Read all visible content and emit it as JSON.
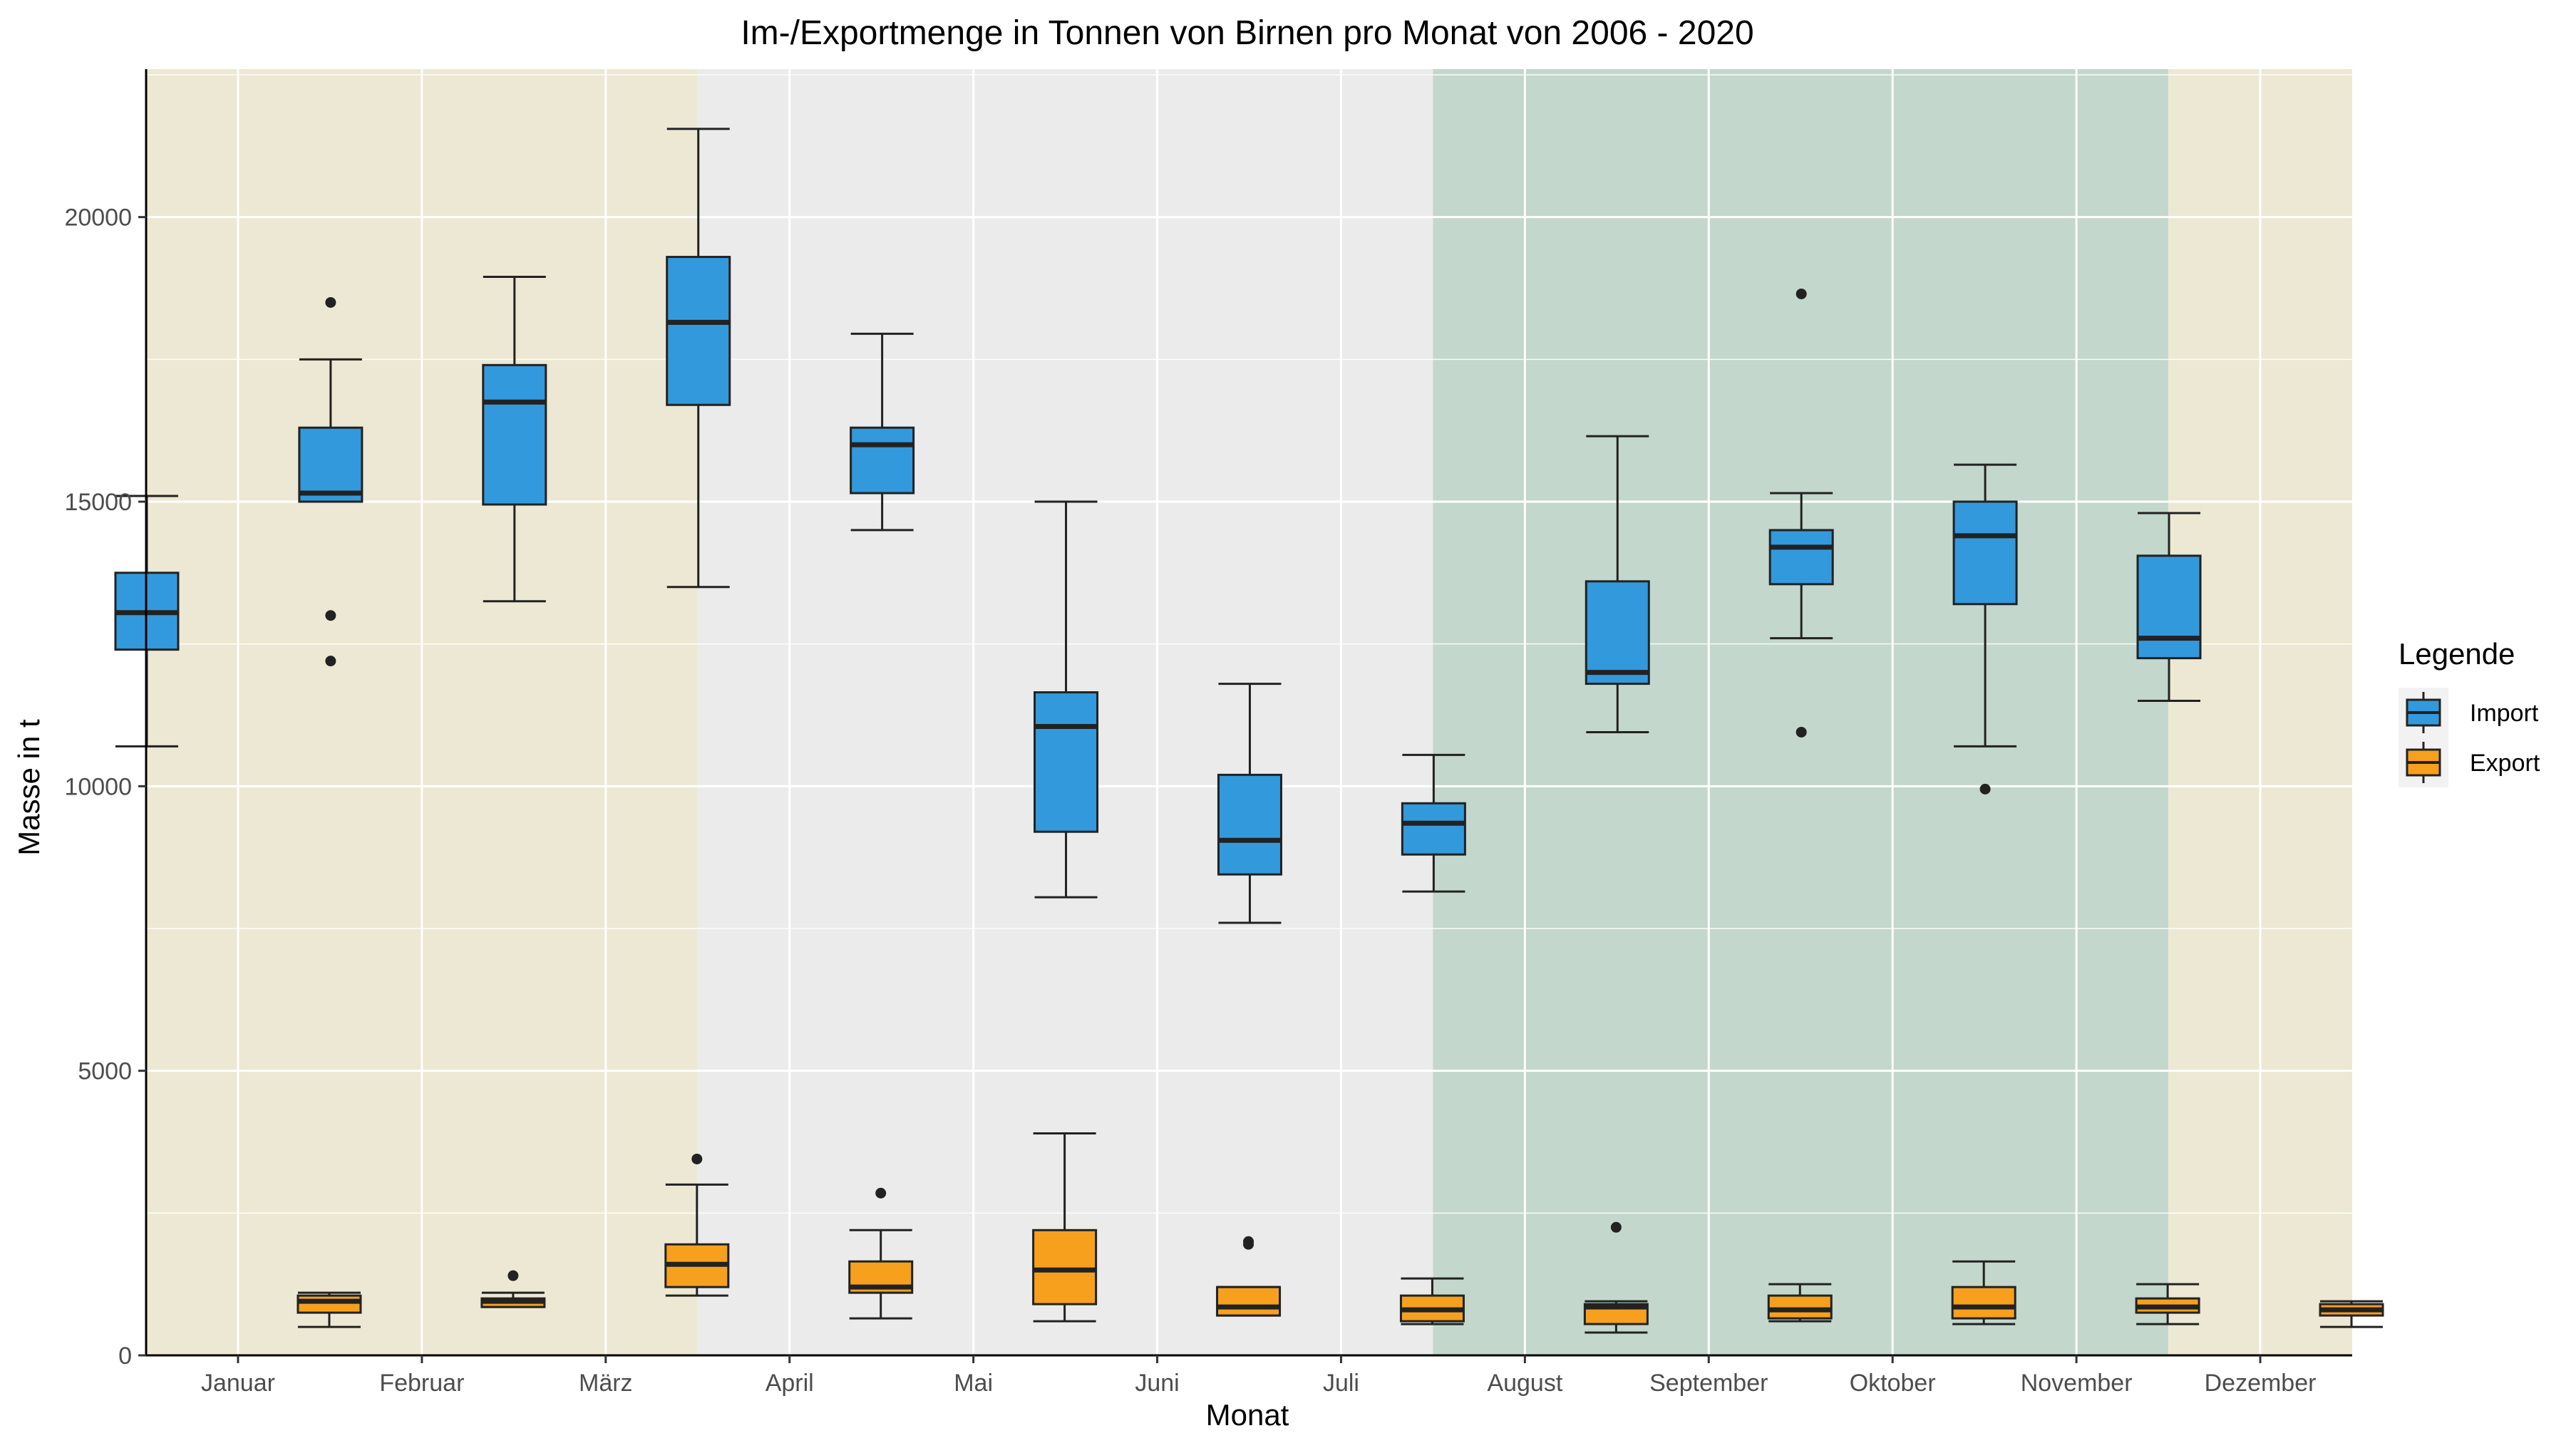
{
  "chart_data": {
    "type": "box",
    "title": "Im-/Exportmenge in Tonnen von Birnen pro Monat von 2006 - 2020",
    "xlabel": "Monat",
    "ylabel": "Masse in t",
    "ylim": [
      0,
      22600
    ],
    "yticks": [
      0,
      5000,
      10000,
      15000,
      20000
    ],
    "grid": true,
    "categories": [
      "Januar",
      "Februar",
      "März",
      "April",
      "Mai",
      "Juni",
      "Juli",
      "August",
      "September",
      "Oktober",
      "November",
      "Dezember"
    ],
    "season_bands": [
      {
        "from": 0,
        "to": 2,
        "color": "#ede8d3"
      },
      {
        "from": 3,
        "to": 6,
        "color": "#ebebeb"
      },
      {
        "from": 7,
        "to": 10,
        "color": "#c3d7cc"
      },
      {
        "from": 11,
        "to": 11,
        "color": "#ede8d3"
      }
    ],
    "legend": {
      "title": "Legende",
      "position": "right"
    },
    "series": [
      {
        "name": "Import",
        "color": "#3399dd",
        "boxes": [
          {
            "min": 10700,
            "q1": 12400,
            "median": 13050,
            "q3": 13750,
            "max": 15100,
            "outliers": []
          },
          {
            "min": 15000,
            "q1": 15000,
            "median": 15150,
            "q3": 16300,
            "max": 17500,
            "outliers": [
              18500,
              13000,
              12200
            ]
          },
          {
            "min": 13250,
            "q1": 14950,
            "median": 16750,
            "q3": 17400,
            "max": 18950,
            "outliers": []
          },
          {
            "min": 13500,
            "q1": 16700,
            "median": 18150,
            "q3": 19300,
            "max": 21550,
            "outliers": []
          },
          {
            "min": 14500,
            "q1": 15150,
            "median": 16000,
            "q3": 16300,
            "max": 17950,
            "outliers": []
          },
          {
            "min": 8050,
            "q1": 9200,
            "median": 11050,
            "q3": 11650,
            "max": 15000,
            "outliers": []
          },
          {
            "min": 7600,
            "q1": 8450,
            "median": 9050,
            "q3": 10200,
            "max": 11800,
            "outliers": []
          },
          {
            "min": 8150,
            "q1": 8800,
            "median": 9350,
            "q3": 9700,
            "max": 10550,
            "outliers": []
          },
          {
            "min": 10950,
            "q1": 11800,
            "median": 12000,
            "q3": 13600,
            "max": 16150,
            "outliers": []
          },
          {
            "min": 12600,
            "q1": 13550,
            "median": 14200,
            "q3": 14500,
            "max": 15150,
            "outliers": [
              18650,
              10950
            ]
          },
          {
            "min": 10700,
            "q1": 13200,
            "median": 14400,
            "q3": 15000,
            "max": 15650,
            "outliers": [
              9950
            ]
          },
          {
            "min": 11500,
            "q1": 12250,
            "median": 12600,
            "q3": 14050,
            "max": 14800,
            "outliers": []
          }
        ]
      },
      {
        "name": "Export",
        "color": "#f7a01e",
        "boxes": [
          {
            "min": 500,
            "q1": 750,
            "median": 950,
            "q3": 1050,
            "max": 1100,
            "outliers": []
          },
          {
            "min": 850,
            "q1": 850,
            "median": 950,
            "q3": 1000,
            "max": 1100,
            "outliers": [
              1400
            ]
          },
          {
            "min": 1050,
            "q1": 1200,
            "median": 1600,
            "q3": 1950,
            "max": 3000,
            "outliers": [
              3450
            ]
          },
          {
            "min": 650,
            "q1": 1100,
            "median": 1200,
            "q3": 1650,
            "max": 2200,
            "outliers": [
              2850
            ]
          },
          {
            "min": 600,
            "q1": 900,
            "median": 1500,
            "q3": 2200,
            "max": 3900,
            "outliers": []
          },
          {
            "min": 700,
            "q1": 700,
            "median": 850,
            "q3": 1200,
            "max": 1200,
            "outliers": [
              1950,
              2000
            ]
          },
          {
            "min": 550,
            "q1": 600,
            "median": 800,
            "q3": 1050,
            "max": 1350,
            "outliers": []
          },
          {
            "min": 400,
            "q1": 550,
            "median": 850,
            "q3": 900,
            "max": 950,
            "outliers": [
              2250
            ]
          },
          {
            "min": 600,
            "q1": 650,
            "median": 800,
            "q3": 1050,
            "max": 1250,
            "outliers": []
          },
          {
            "min": 550,
            "q1": 650,
            "median": 850,
            "q3": 1200,
            "max": 1650,
            "outliers": []
          },
          {
            "min": 550,
            "q1": 750,
            "median": 850,
            "q3": 1000,
            "max": 1250,
            "outliers": []
          },
          {
            "min": 500,
            "q1": 700,
            "median": 800,
            "q3": 900,
            "max": 950,
            "outliers": []
          }
        ]
      }
    ]
  }
}
